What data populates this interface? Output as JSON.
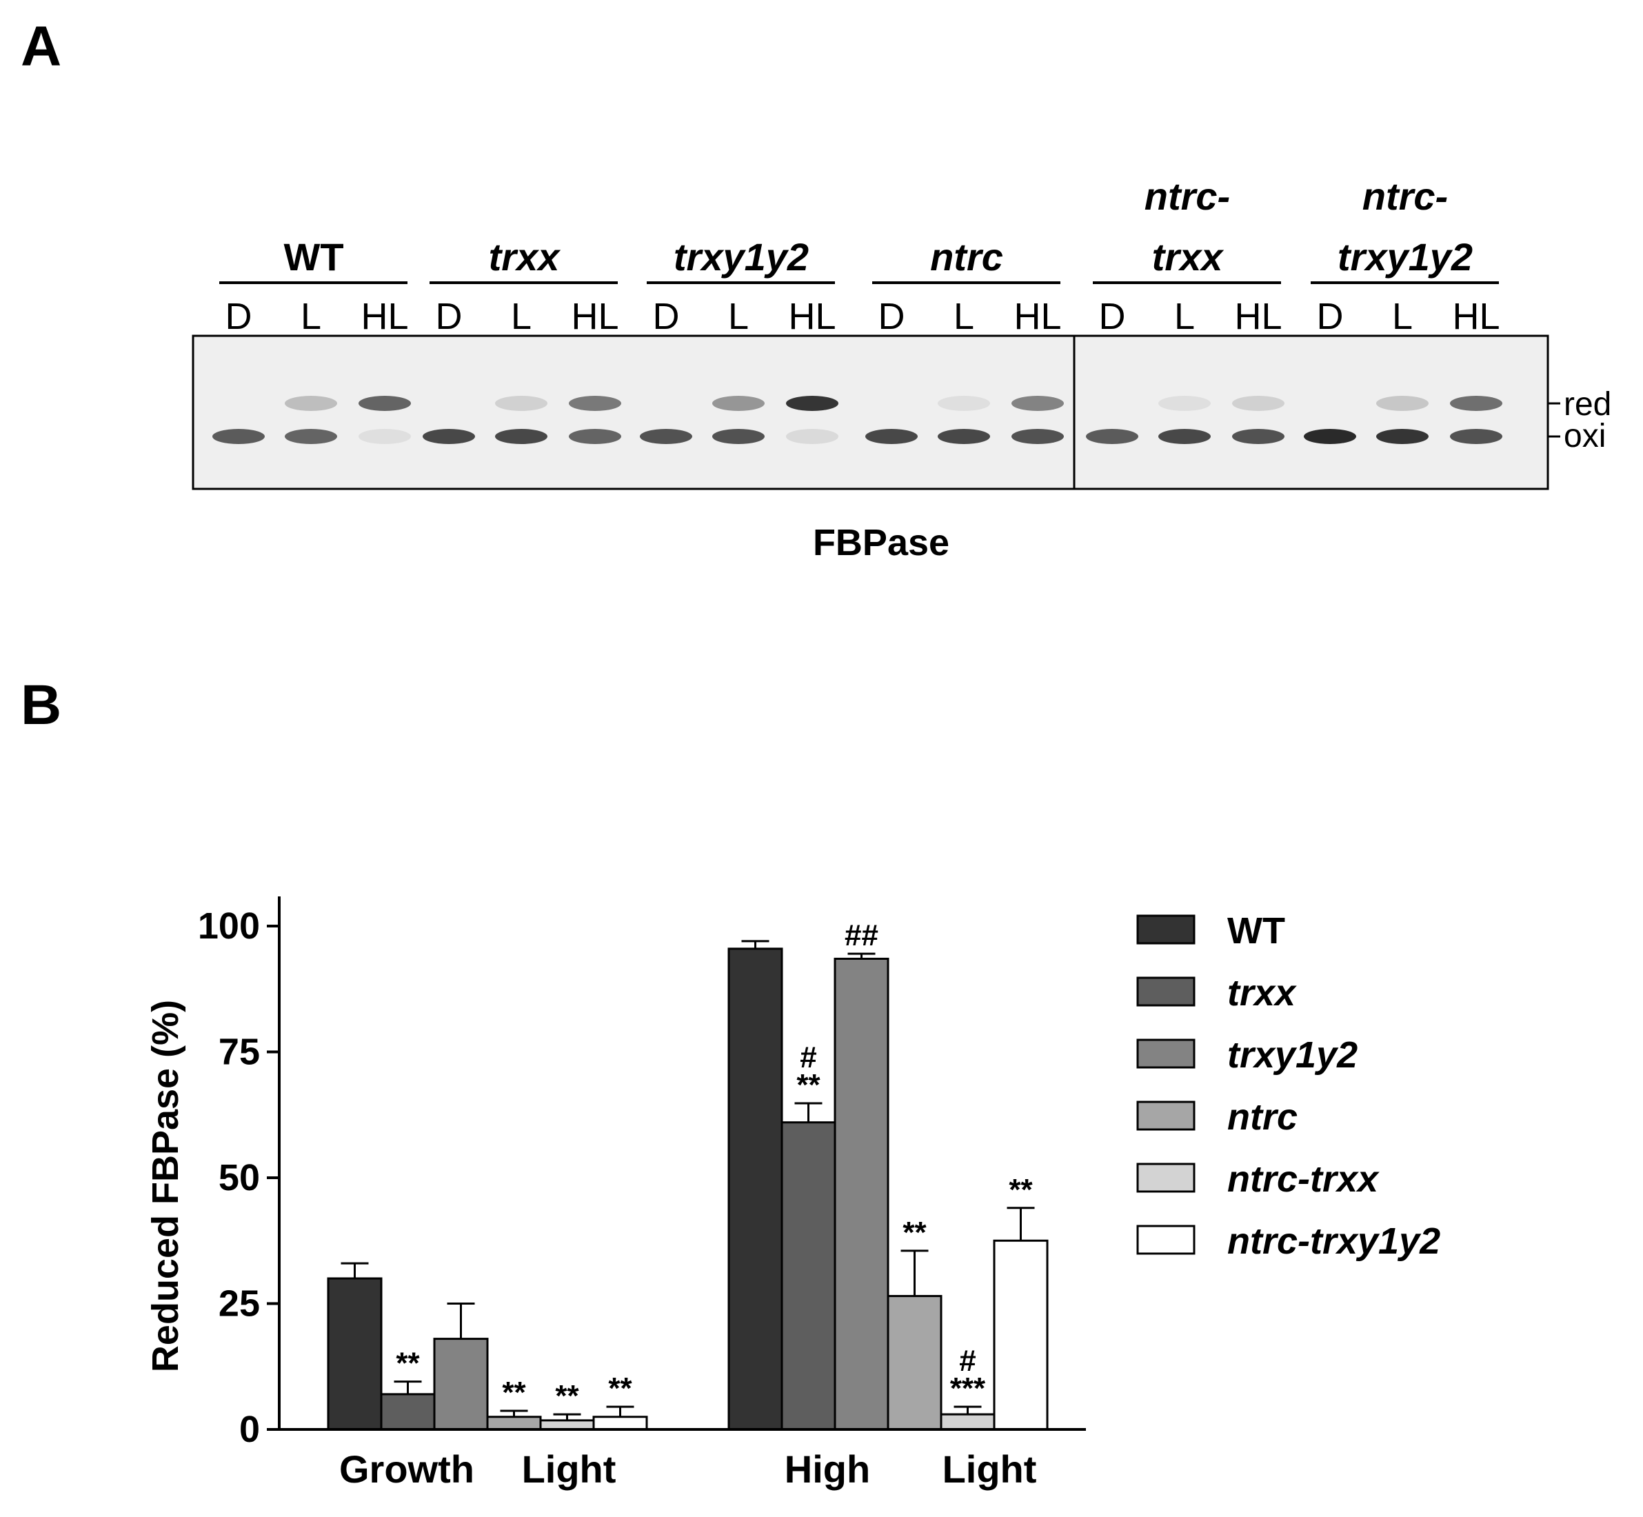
{
  "panel_a": {
    "label": "A",
    "groups": [
      {
        "lines": [
          "WT"
        ],
        "italic": false
      },
      {
        "lines": [
          "trxx"
        ],
        "italic": true
      },
      {
        "lines": [
          "trxy1y2"
        ],
        "italic": true
      },
      {
        "lines": [
          "ntrc"
        ],
        "italic": true
      },
      {
        "lines": [
          "ntrc-",
          "trxx"
        ],
        "italic": true
      },
      {
        "lines": [
          "ntrc-",
          "trxy1y2"
        ],
        "italic": true
      }
    ],
    "lanes": [
      "D",
      "L",
      "HL"
    ],
    "band_labels": {
      "red": "red",
      "oxi": "oxi"
    },
    "blot_caption": "FBPase",
    "blot_colors": {
      "background": "#efefef",
      "band": "#2a2a2a"
    },
    "bands": [
      {
        "red": 0.0,
        "oxi": 0.75
      },
      {
        "red": 0.25,
        "oxi": 0.7
      },
      {
        "red": 0.7,
        "oxi": 0.08
      },
      {
        "red": 0.0,
        "oxi": 0.85
      },
      {
        "red": 0.15,
        "oxi": 0.85
      },
      {
        "red": 0.6,
        "oxi": 0.7
      },
      {
        "red": 0.0,
        "oxi": 0.8
      },
      {
        "red": 0.45,
        "oxi": 0.8
      },
      {
        "red": 0.95,
        "oxi": 0.1
      },
      {
        "red": 0.0,
        "oxi": 0.85
      },
      {
        "red": 0.08,
        "oxi": 0.85
      },
      {
        "red": 0.55,
        "oxi": 0.8
      },
      {
        "red": 0.0,
        "oxi": 0.75
      },
      {
        "red": 0.08,
        "oxi": 0.85
      },
      {
        "red": 0.15,
        "oxi": 0.8
      },
      {
        "red": 0.0,
        "oxi": 1.0
      },
      {
        "red": 0.2,
        "oxi": 0.95
      },
      {
        "red": 0.65,
        "oxi": 0.8
      }
    ]
  },
  "panel_b": {
    "label": "B"
  },
  "chart_data": {
    "type": "bar",
    "ylabel": "Reduced FBPase (%)",
    "ylim": [
      0,
      100
    ],
    "yticks": [
      0,
      25,
      50,
      75,
      100
    ],
    "categories": [
      "Growth Light",
      "High Light"
    ],
    "category_labels": [
      [
        "Growth",
        "Light"
      ],
      [
        "High",
        "Light"
      ]
    ],
    "legend_position": "right",
    "series": [
      {
        "name": "WT",
        "italic": false,
        "color": "#333333",
        "values": [
          30,
          95.5
        ],
        "errors": [
          3,
          1.5
        ],
        "annotations": [
          [],
          []
        ]
      },
      {
        "name": "trxx",
        "italic": true,
        "color": "#5e5e5e",
        "values": [
          7,
          61
        ],
        "errors": [
          2.5,
          3.8
        ],
        "annotations": [
          [
            "**"
          ],
          [
            "#",
            "**"
          ]
        ]
      },
      {
        "name": "trxy1y2",
        "italic": true,
        "color": "#838383",
        "values": [
          18,
          93.5
        ],
        "errors": [
          7,
          1
        ],
        "annotations": [
          [],
          [
            "##"
          ]
        ]
      },
      {
        "name": "ntrc",
        "italic": true,
        "color": "#a6a6a6",
        "values": [
          2.5,
          26.5
        ],
        "errors": [
          1.2,
          9
        ],
        "annotations": [
          [
            "**"
          ],
          [
            "**"
          ]
        ]
      },
      {
        "name": "ntrc-trxx",
        "italic": true,
        "color": "#d3d3d3",
        "values": [
          1.8,
          3
        ],
        "errors": [
          1.2,
          1.5
        ],
        "annotations": [
          [
            "**"
          ],
          [
            "#",
            "***"
          ]
        ]
      },
      {
        "name": "ntrc-trxy1y2",
        "italic": true,
        "color": "#ffffff",
        "values": [
          2.5,
          37.5
        ],
        "errors": [
          2,
          6.5
        ],
        "annotations": [
          [
            "**"
          ],
          [
            "**"
          ]
        ]
      }
    ]
  }
}
